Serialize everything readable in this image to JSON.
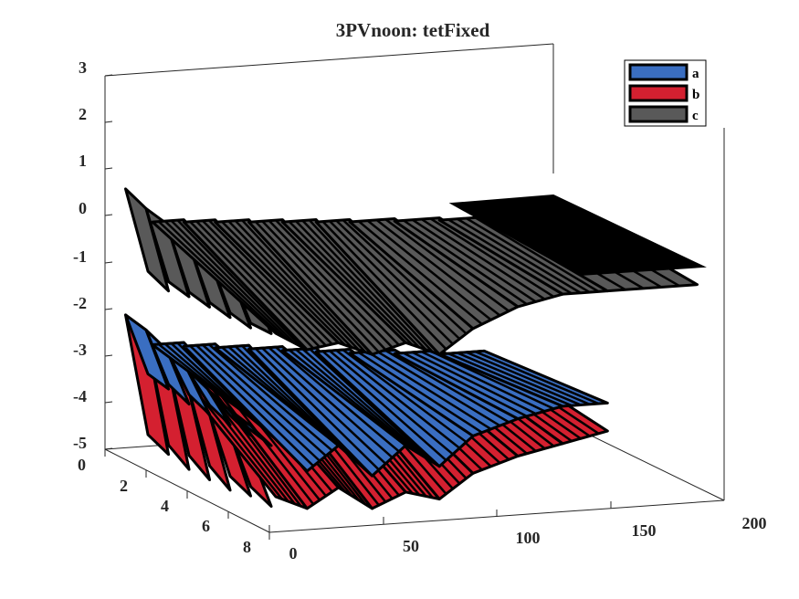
{
  "chart_data": {
    "type": "area",
    "title": "3PVnoon: tetFixed",
    "xlabel": "",
    "ylabel": "",
    "zlabel": "",
    "x_ticks": [
      "0",
      "50",
      "100",
      "150",
      "200"
    ],
    "y_ticks": [
      "0",
      "2",
      "4",
      "6",
      "8"
    ],
    "z_ticks": [
      "3",
      "2",
      "1",
      "0",
      "-1",
      "-2",
      "-3",
      "-4",
      "-5"
    ],
    "xlim": [
      0,
      200
    ],
    "ylim": [
      0,
      8
    ],
    "zlim": [
      -5,
      3
    ],
    "grid": false,
    "legend_position": "top-right",
    "series": [
      {
        "name": "a",
        "color": "#3a6ec1",
        "start": [
          -1.9,
          -2.0,
          -2.2,
          -2.4,
          -2.6,
          -2.8,
          -3.0
        ],
        "drops": [
          [
            12,
            -3.2
          ],
          [
            26,
            -4.0
          ],
          [
            40,
            -3.5
          ],
          [
            55,
            -4.2
          ],
          [
            70,
            -3.6
          ],
          [
            85,
            -4.1
          ],
          [
            100,
            -3.5
          ],
          [
            120,
            -3.2
          ],
          [
            140,
            -3.0
          ],
          [
            160,
            -3.0
          ]
        ]
      },
      {
        "name": "b",
        "color": "#d42030",
        "start": [
          -1.9,
          -2.1,
          -2.4,
          -2.7,
          -3.0,
          -3.2,
          -3.4
        ],
        "drops": [
          [
            12,
            -4.5
          ],
          [
            26,
            -4.8
          ],
          [
            40,
            -4.4
          ],
          [
            55,
            -4.9
          ],
          [
            70,
            -4.6
          ],
          [
            85,
            -4.8
          ],
          [
            100,
            -4.3
          ],
          [
            120,
            -4.0
          ],
          [
            140,
            -3.8
          ],
          [
            160,
            -3.6
          ]
        ]
      },
      {
        "name": "c",
        "color": "#595959",
        "start": [
          0.8,
          0.6,
          0.5,
          0.4,
          0.3,
          0.2,
          0.2
        ],
        "drops": [
          [
            12,
            -1.0
          ],
          [
            26,
            -1.4
          ],
          [
            40,
            -1.3
          ],
          [
            55,
            -1.6
          ],
          [
            70,
            -1.4
          ],
          [
            85,
            -1.7
          ],
          [
            100,
            -1.2
          ],
          [
            120,
            -0.8
          ],
          [
            140,
            -0.6
          ],
          [
            160,
            -0.6
          ],
          [
            200,
            -0.6
          ]
        ]
      }
    ]
  }
}
